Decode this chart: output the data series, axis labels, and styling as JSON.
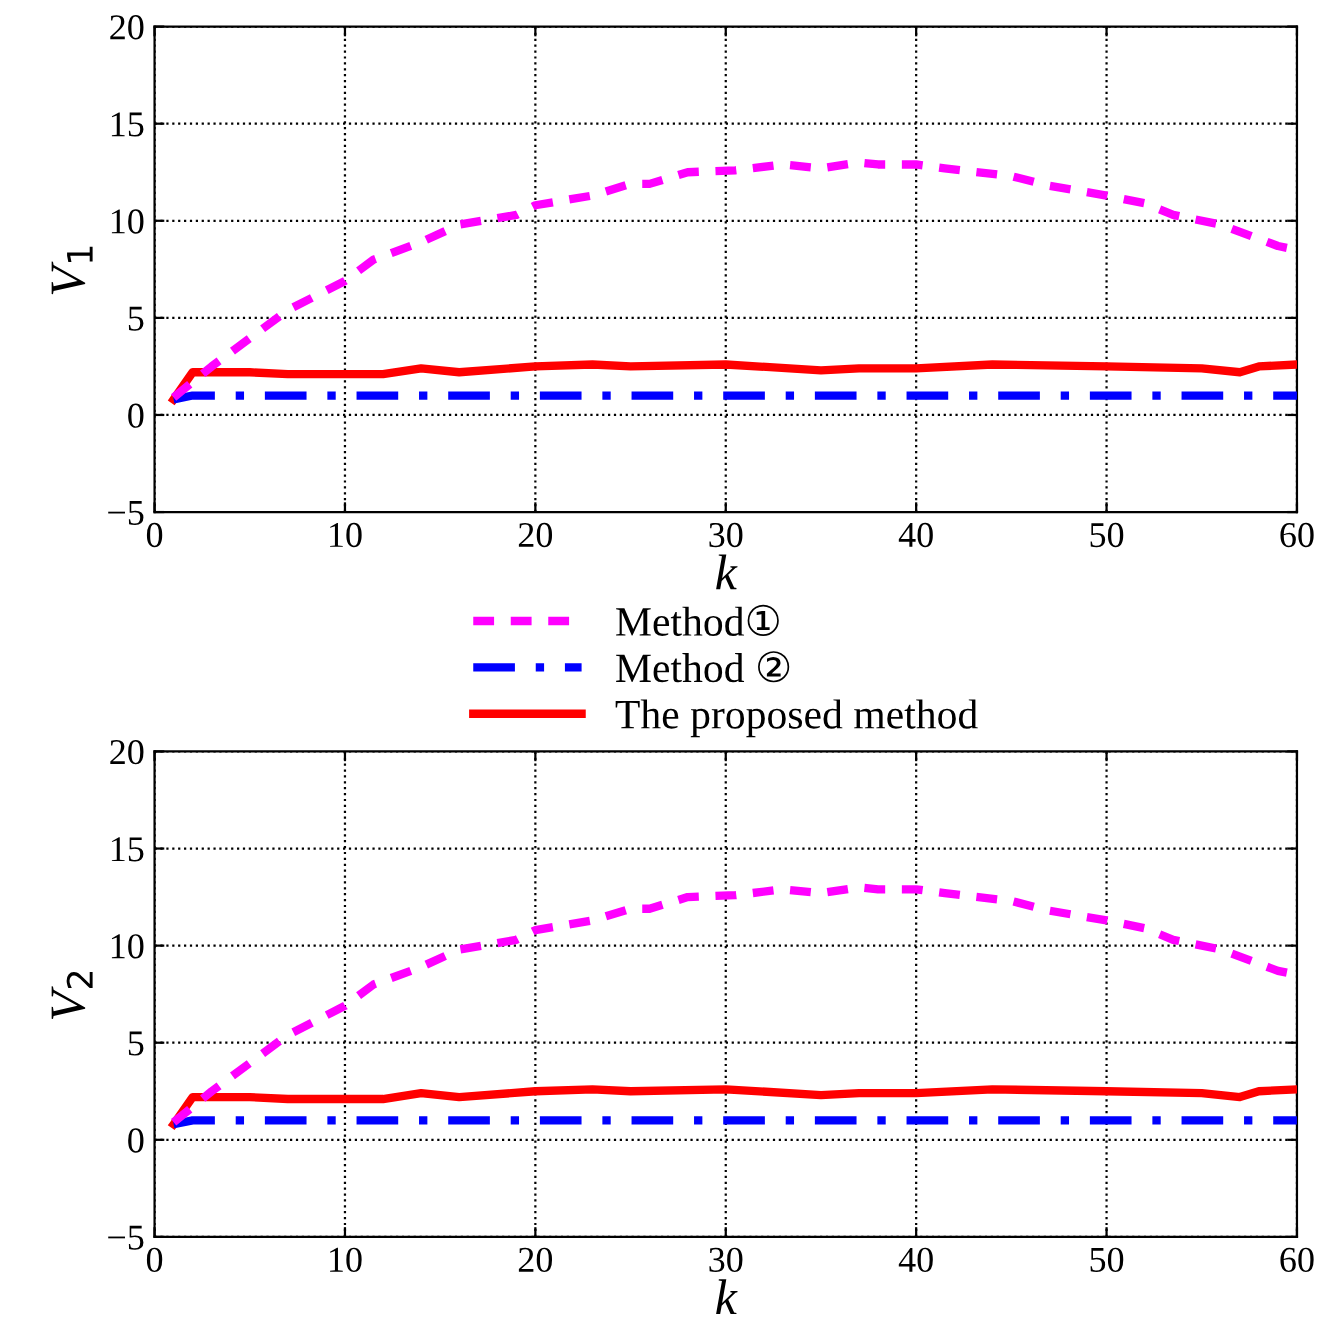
{
  "chart_data": [
    {
      "type": "line",
      "xlabel": "k",
      "ylabel": "V$_{1}$",
      "xlim": [
        0,
        60
      ],
      "ylim": [
        -5,
        20
      ],
      "xticks": [
        0,
        10,
        20,
        30,
        40,
        50,
        60
      ],
      "yticks": [
        -5,
        0,
        5,
        10,
        15,
        20
      ],
      "grid": true,
      "legend": "bottom",
      "series": [
        {
          "name": "Method①",
          "color": "#ff00ff",
          "line_style": "dashed",
          "x": [
            1,
            3,
            7,
            10,
            11.5,
            14,
            16,
            19,
            20,
            23,
            25,
            26,
            28,
            30.5,
            33,
            35,
            37,
            38,
            40,
            41.5,
            45,
            47,
            50,
            52,
            53.5,
            56,
            59,
            60
          ],
          "values": [
            0.9,
            2.5,
            5.4,
            6.9,
            8,
            8.9,
            9.8,
            10.3,
            10.8,
            11.3,
            11.9,
            11.9,
            12.5,
            12.6,
            12.9,
            12.7,
            13.0,
            12.9,
            12.9,
            12.7,
            12.3,
            11.8,
            11.3,
            10.9,
            10.3,
            9.8,
            8.7,
            8.5
          ]
        },
        {
          "name": "Method ②",
          "color": "#0000ff",
          "line_style": "dashdot",
          "x": [
            1,
            2,
            60
          ],
          "values": [
            0.8,
            1,
            1
          ]
        },
        {
          "name": "The proposed method",
          "color": "#ff0000",
          "line_style": "solid",
          "x": [
            1,
            2,
            5,
            7,
            12,
            14,
            16,
            20,
            23,
            25,
            30,
            35,
            37,
            40,
            44,
            50,
            55,
            57,
            58,
            60
          ],
          "values": [
            0.8,
            2.2,
            2.2,
            2.1,
            2.1,
            2.4,
            2.2,
            2.5,
            2.6,
            2.5,
            2.6,
            2.3,
            2.4,
            2.4,
            2.6,
            2.5,
            2.4,
            2.2,
            2.5,
            2.6
          ]
        }
      ]
    },
    {
      "type": "line",
      "xlabel": "k",
      "ylabel": "V$_{2}$",
      "xlim": [
        0,
        60
      ],
      "ylim": [
        -5,
        20
      ],
      "xticks": [
        0,
        10,
        20,
        30,
        40,
        50,
        60
      ],
      "yticks": [
        -5,
        0,
        5,
        10,
        15,
        20
      ],
      "grid": true,
      "series": [
        {
          "color": "#ff00ff",
          "line_style": "dashed",
          "x": [
            1,
            3,
            7,
            10,
            11.5,
            14,
            16,
            19,
            20,
            23,
            25,
            26,
            28,
            30.5,
            33,
            35,
            37,
            38,
            40,
            41.5,
            45,
            47,
            50,
            52,
            53.5,
            56,
            59,
            60
          ],
          "values": [
            0.9,
            2.5,
            5.4,
            6.9,
            8,
            8.9,
            9.8,
            10.3,
            10.8,
            11.3,
            11.9,
            11.9,
            12.5,
            12.6,
            12.9,
            12.7,
            13.0,
            12.9,
            12.9,
            12.7,
            12.3,
            11.8,
            11.3,
            10.9,
            10.3,
            9.8,
            8.7,
            8.5
          ]
        },
        {
          "color": "#0000ff",
          "line_style": "dashdot",
          "x": [
            1,
            2,
            60
          ],
          "values": [
            0.8,
            1,
            1
          ]
        },
        {
          "color": "#ff0000",
          "line_style": "solid",
          "x": [
            1,
            2,
            5,
            7,
            12,
            14,
            16,
            20,
            23,
            25,
            30,
            35,
            37,
            40,
            44,
            50,
            55,
            57,
            58,
            60
          ],
          "values": [
            0.8,
            2.2,
            2.2,
            2.1,
            2.1,
            2.4,
            2.2,
            2.5,
            2.6,
            2.5,
            2.6,
            2.3,
            2.4,
            2.4,
            2.6,
            2.5,
            2.4,
            2.2,
            2.5,
            2.6
          ]
        }
      ]
    }
  ]
}
